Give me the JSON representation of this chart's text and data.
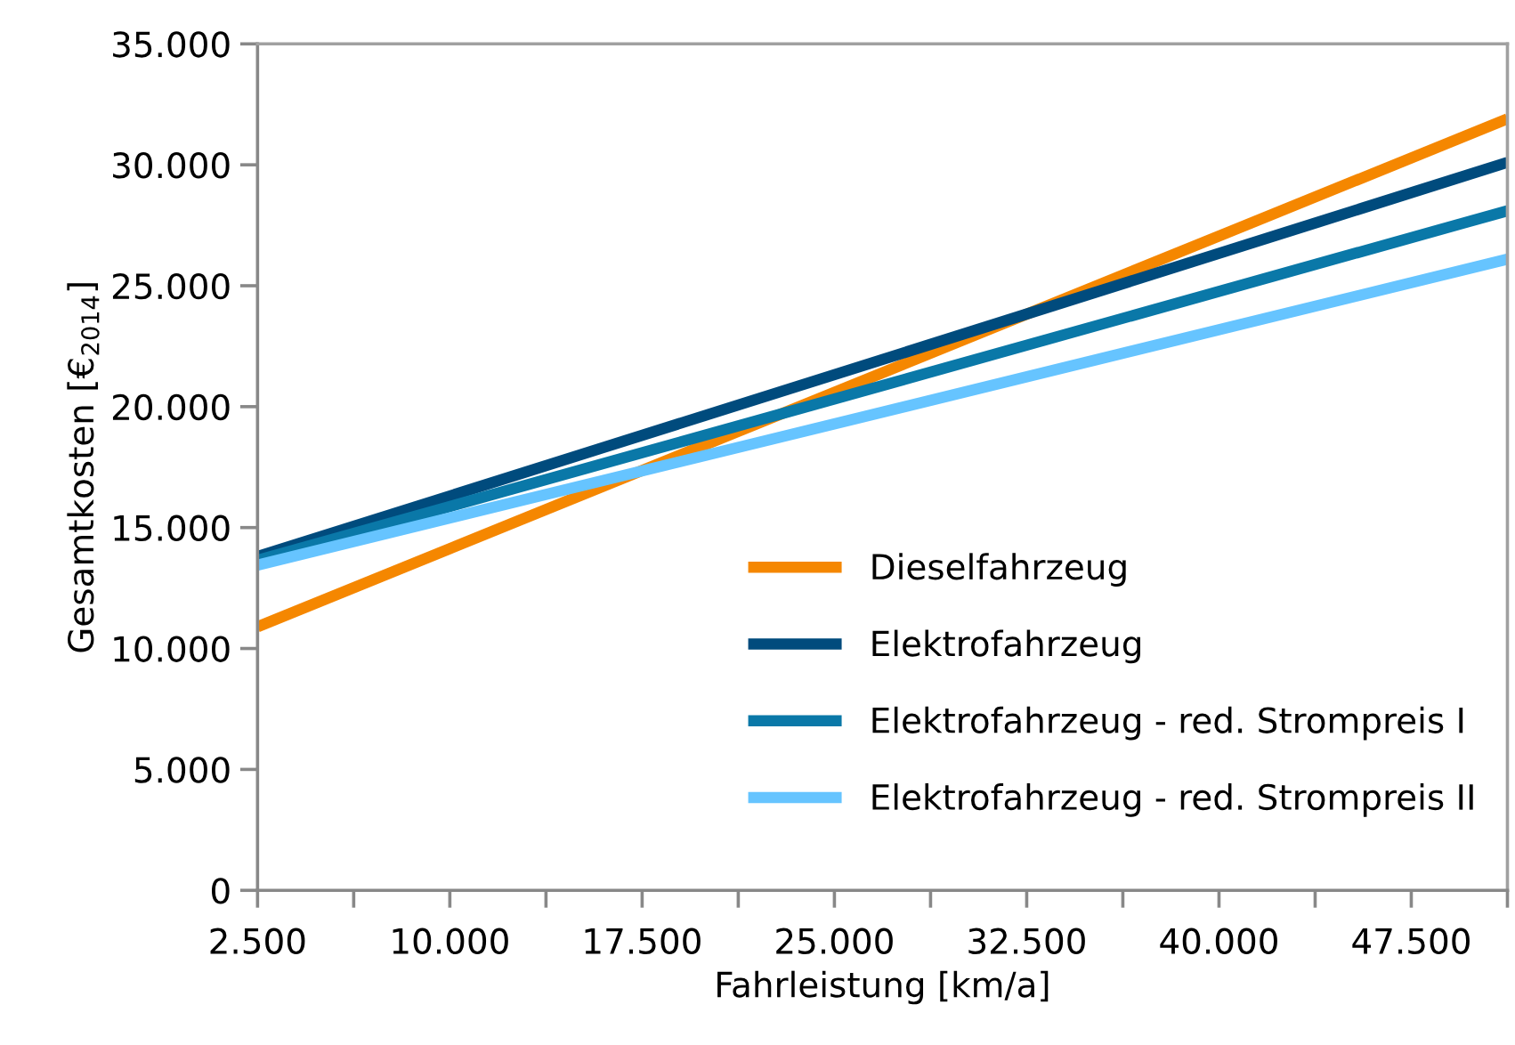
{
  "chart_data": {
    "type": "line",
    "xlabel": "Fahrleistung [km/a]",
    "ylabel": "Gesamtkosten [€$_{2014}$]",
    "x": [
      2500,
      51250
    ],
    "series": [
      {
        "name": "Dieselfahrzeug",
        "color": "#f58700",
        "values": [
          10900,
          31900
        ]
      },
      {
        "name": "Elektrofahrzeug",
        "color": "#004b7d",
        "values": [
          13800,
          30100
        ]
      },
      {
        "name": "Elektrofahrzeug - red. Strompreis I",
        "color": "#0a78a8",
        "values": [
          13650,
          28100
        ]
      },
      {
        "name": "Elektrofahrzeug - red. Strompreis II",
        "color": "#66c4ff",
        "values": [
          13450,
          26100
        ]
      }
    ],
    "xlim": [
      2500,
      51250
    ],
    "xticks": [
      {
        "value": 2500,
        "label": "2.500"
      },
      {
        "value": 6250,
        "label": null
      },
      {
        "value": 10000,
        "label": "10.000"
      },
      {
        "value": 13750,
        "label": null
      },
      {
        "value": 17500,
        "label": "17.500"
      },
      {
        "value": 21250,
        "label": null
      },
      {
        "value": 25000,
        "label": "25.000"
      },
      {
        "value": 28750,
        "label": null
      },
      {
        "value": 32500,
        "label": "32.500"
      },
      {
        "value": 36250,
        "label": null
      },
      {
        "value": 40000,
        "label": "40.000"
      },
      {
        "value": 43750,
        "label": null
      },
      {
        "value": 47500,
        "label": "47.500"
      },
      {
        "value": 51250,
        "label": null
      }
    ],
    "ylim": [
      0,
      35000
    ],
    "yticks": [
      {
        "value": 0,
        "label": "0"
      },
      {
        "value": 5000,
        "label": "5.000"
      },
      {
        "value": 10000,
        "label": "10.000"
      },
      {
        "value": 15000,
        "label": "15.000"
      },
      {
        "value": 20000,
        "label": "20.000"
      },
      {
        "value": 25000,
        "label": "25.000"
      },
      {
        "value": 30000,
        "label": "30.000"
      },
      {
        "value": 35000,
        "label": "35.000"
      }
    ],
    "grid": false,
    "legend": "lower right",
    "marker": "none",
    "line_style": "solid"
  }
}
